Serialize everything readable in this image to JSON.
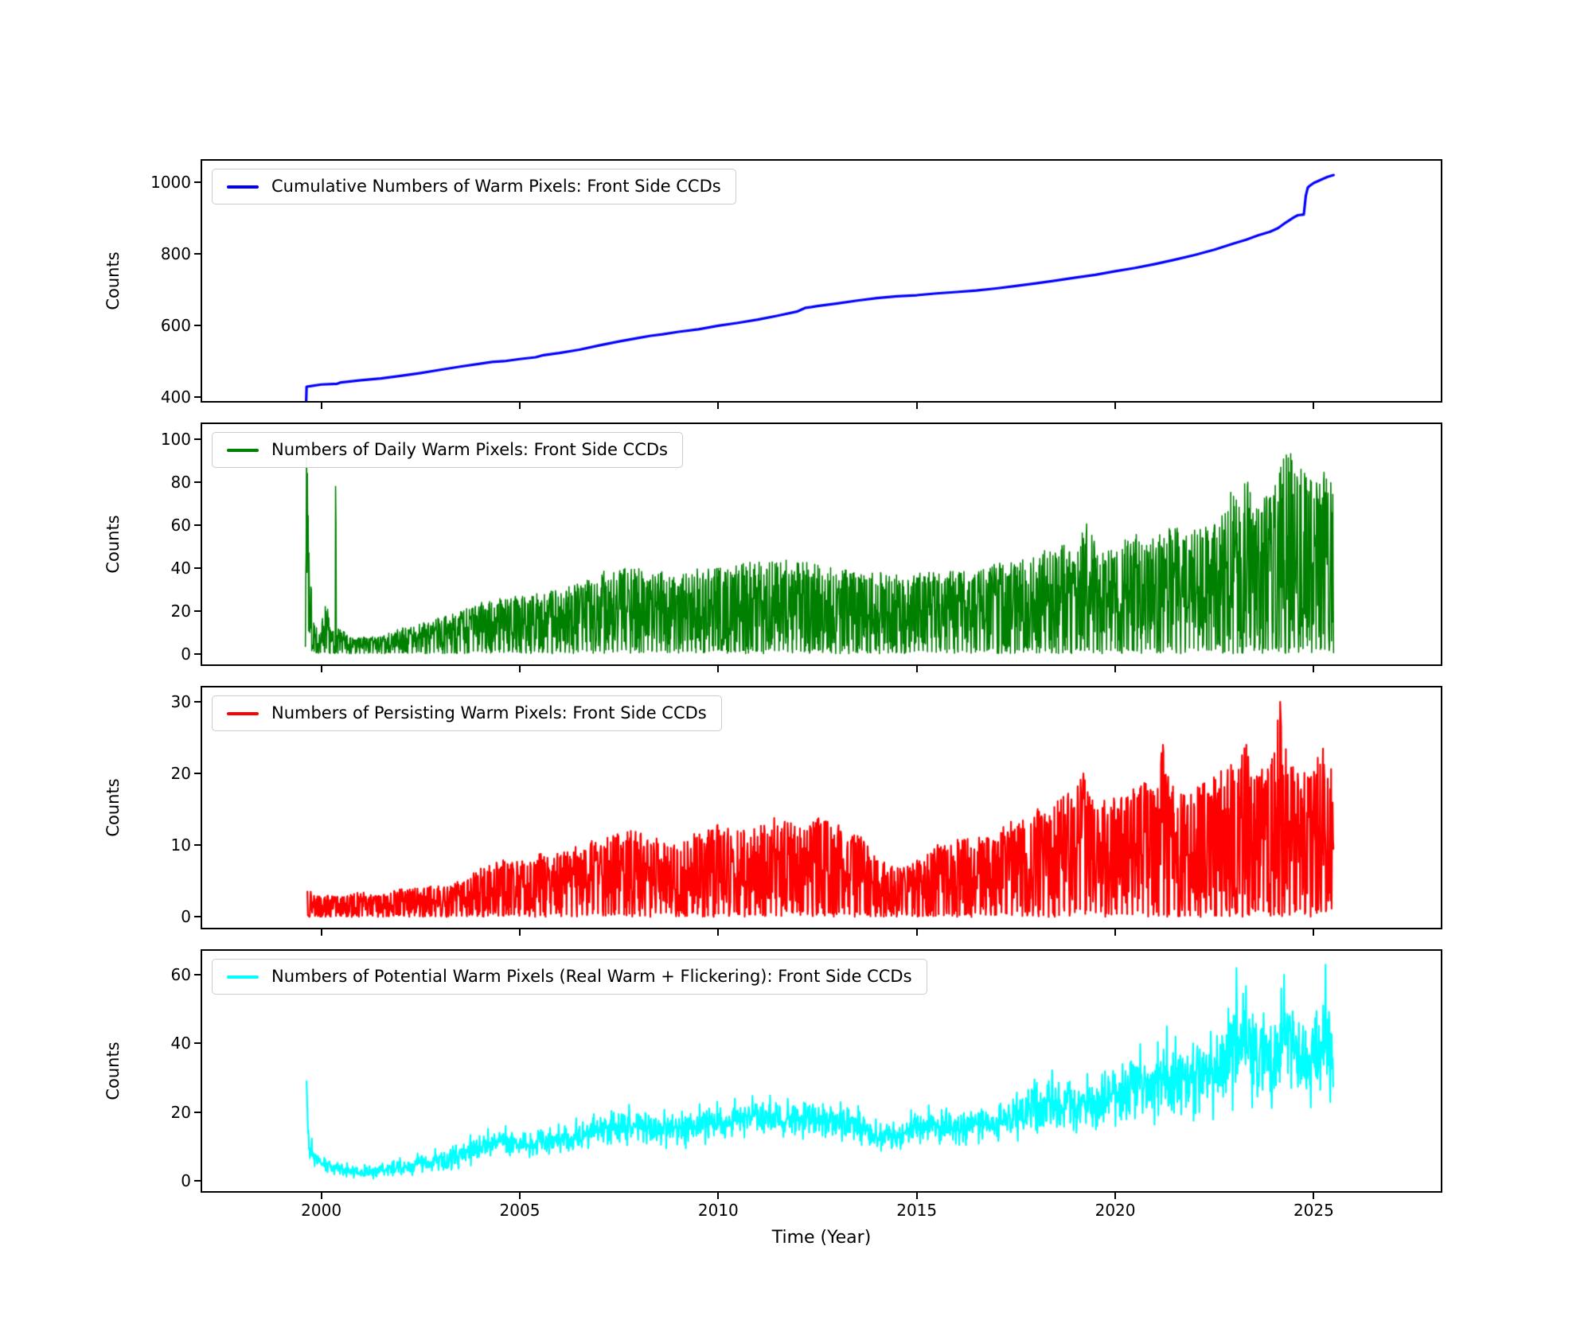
{
  "xaxis": {
    "label": "Time (Year)",
    "xlim": [
      1997.0,
      2028.2
    ],
    "ticks": [
      2000,
      2005,
      2010,
      2015,
      2020,
      2025
    ]
  },
  "chart_data": [
    {
      "id": "cumulative",
      "type": "line",
      "color": "#0000ff",
      "line_width": 3.2,
      "label": "Cumulative Numbers of Warm Pixels: Front Side CCDs",
      "ylabel": "Counts",
      "ylim": [
        390,
        1060
      ],
      "yticks": [
        400,
        600,
        800,
        1000
      ],
      "points": [
        [
          1999.62,
          390
        ],
        [
          1999.63,
          430
        ],
        [
          1999.75,
          432
        ],
        [
          2000.0,
          436
        ],
        [
          2000.4,
          438
        ],
        [
          2000.5,
          442
        ],
        [
          2001.0,
          448
        ],
        [
          2001.5,
          453
        ],
        [
          2002.0,
          460
        ],
        [
          2002.5,
          468
        ],
        [
          2003.0,
          477
        ],
        [
          2003.5,
          486
        ],
        [
          2004.0,
          494
        ],
        [
          2004.3,
          499
        ],
        [
          2004.6,
          501
        ],
        [
          2005.0,
          507
        ],
        [
          2005.4,
          512
        ],
        [
          2005.6,
          518
        ],
        [
          2006.0,
          524
        ],
        [
          2006.5,
          533
        ],
        [
          2007.0,
          545
        ],
        [
          2007.5,
          556
        ],
        [
          2008.0,
          566
        ],
        [
          2008.3,
          572
        ],
        [
          2008.6,
          576
        ],
        [
          2009.0,
          583
        ],
        [
          2009.5,
          590
        ],
        [
          2010.0,
          600
        ],
        [
          2010.5,
          608
        ],
        [
          2011.0,
          617
        ],
        [
          2011.5,
          628
        ],
        [
          2012.0,
          640
        ],
        [
          2012.2,
          650
        ],
        [
          2012.35,
          652
        ],
        [
          2012.5,
          655
        ],
        [
          2013.0,
          662
        ],
        [
          2013.5,
          670
        ],
        [
          2014.0,
          677
        ],
        [
          2014.5,
          682
        ],
        [
          2015.0,
          685
        ],
        [
          2015.5,
          690
        ],
        [
          2016.0,
          694
        ],
        [
          2016.5,
          698
        ],
        [
          2017.0,
          704
        ],
        [
          2017.5,
          711
        ],
        [
          2018.0,
          718
        ],
        [
          2018.5,
          726
        ],
        [
          2019.0,
          734
        ],
        [
          2019.5,
          742
        ],
        [
          2020.0,
          752
        ],
        [
          2020.5,
          761
        ],
        [
          2021.0,
          772
        ],
        [
          2021.5,
          784
        ],
        [
          2022.0,
          797
        ],
        [
          2022.5,
          812
        ],
        [
          2023.0,
          830
        ],
        [
          2023.3,
          840
        ],
        [
          2023.6,
          852
        ],
        [
          2023.9,
          862
        ],
        [
          2024.1,
          872
        ],
        [
          2024.3,
          888
        ],
        [
          2024.5,
          902
        ],
        [
          2024.6,
          908
        ],
        [
          2024.75,
          910
        ],
        [
          2024.8,
          962
        ],
        [
          2024.85,
          985
        ],
        [
          2024.9,
          990
        ],
        [
          2025.0,
          998
        ],
        [
          2025.2,
          1008
        ],
        [
          2025.35,
          1015
        ],
        [
          2025.5,
          1020
        ]
      ]
    },
    {
      "id": "daily",
      "type": "line",
      "color": "#008000",
      "line_width": 1.6,
      "label": "Numbers of Daily Warm Pixels: Front Side CCDs",
      "ylabel": "Counts",
      "ylim": [
        -5,
        107
      ],
      "yticks": [
        0,
        20,
        40,
        60,
        80,
        100
      ],
      "noise": {
        "mode": "band",
        "seed": 7,
        "dt": 0.01,
        "range": [
          1999.6,
          2025.5
        ],
        "envelope": [
          [
            1999.6,
            4
          ],
          [
            1999.63,
            100
          ],
          [
            1999.7,
            55
          ],
          [
            1999.78,
            16
          ],
          [
            1999.95,
            10
          ],
          [
            2000.05,
            20
          ],
          [
            2000.15,
            22
          ],
          [
            2000.25,
            10
          ],
          [
            2000.34,
            12
          ],
          [
            2000.365,
            78
          ],
          [
            2000.39,
            12
          ],
          [
            2000.8,
            8
          ],
          [
            2001.5,
            8
          ],
          [
            2002.0,
            12
          ],
          [
            2002.5,
            14
          ],
          [
            2003.0,
            17
          ],
          [
            2003.5,
            20
          ],
          [
            2004.0,
            24
          ],
          [
            2004.5,
            26
          ],
          [
            2005.0,
            27
          ],
          [
            2006.0,
            30
          ],
          [
            2006.5,
            33
          ],
          [
            2007.0,
            38
          ],
          [
            2007.5,
            40
          ],
          [
            2008.0,
            40
          ],
          [
            2009.0,
            38
          ],
          [
            2009.5,
            40
          ],
          [
            2010.0,
            40
          ],
          [
            2010.5,
            42
          ],
          [
            2011.0,
            43
          ],
          [
            2011.5,
            44
          ],
          [
            2012.0,
            43
          ],
          [
            2012.5,
            42
          ],
          [
            2013.0,
            40
          ],
          [
            2013.5,
            38
          ],
          [
            2014.0,
            38
          ],
          [
            2014.5,
            37
          ],
          [
            2015.0,
            38
          ],
          [
            2015.5,
            38
          ],
          [
            2016.0,
            40
          ],
          [
            2016.5,
            40
          ],
          [
            2017.0,
            42
          ],
          [
            2017.5,
            44
          ],
          [
            2018.0,
            46
          ],
          [
            2018.5,
            52
          ],
          [
            2019.0,
            50
          ],
          [
            2019.3,
            62
          ],
          [
            2019.6,
            50
          ],
          [
            2020.0,
            52
          ],
          [
            2020.5,
            58
          ],
          [
            2021.0,
            55
          ],
          [
            2021.5,
            60
          ],
          [
            2022.0,
            58
          ],
          [
            2022.5,
            62
          ],
          [
            2023.0,
            80
          ],
          [
            2023.3,
            82
          ],
          [
            2023.6,
            70
          ],
          [
            2024.0,
            78
          ],
          [
            2024.3,
            96
          ],
          [
            2024.6,
            90
          ],
          [
            2025.0,
            80
          ],
          [
            2025.3,
            88
          ],
          [
            2025.5,
            86
          ]
        ],
        "spikes": [
          [
            1999.63,
            100
          ],
          [
            1999.65,
            84
          ],
          [
            2000.1,
            22
          ],
          [
            2000.36,
            78
          ]
        ]
      }
    },
    {
      "id": "persisting",
      "type": "line",
      "color": "#ff0000",
      "line_width": 2.2,
      "label": "Numbers of Persisting Warm Pixels: Front Side CCDs",
      "ylabel": "Counts",
      "ylim": [
        -1.5,
        32
      ],
      "yticks": [
        0,
        10,
        20,
        30
      ],
      "noise": {
        "mode": "band",
        "seed": 13,
        "dt": 0.012,
        "range": [
          1999.65,
          2025.5
        ],
        "envelope": [
          [
            1999.65,
            4
          ],
          [
            2000.0,
            3
          ],
          [
            2000.5,
            3
          ],
          [
            2001.0,
            3.5
          ],
          [
            2001.5,
            3
          ],
          [
            2002.0,
            4
          ],
          [
            2002.5,
            4
          ],
          [
            2003.0,
            4.5
          ],
          [
            2003.5,
            5
          ],
          [
            2004.0,
            7
          ],
          [
            2004.5,
            8
          ],
          [
            2005.0,
            8
          ],
          [
            2005.5,
            9
          ],
          [
            2006.0,
            9
          ],
          [
            2006.5,
            10
          ],
          [
            2007.0,
            11
          ],
          [
            2007.5,
            12
          ],
          [
            2008.0,
            12
          ],
          [
            2008.5,
            11
          ],
          [
            2009.0,
            10
          ],
          [
            2009.5,
            12
          ],
          [
            2010.0,
            13
          ],
          [
            2010.5,
            12
          ],
          [
            2011.0,
            13
          ],
          [
            2011.5,
            14
          ],
          [
            2012.0,
            13
          ],
          [
            2012.5,
            14
          ],
          [
            2013.0,
            13
          ],
          [
            2013.5,
            12
          ],
          [
            2014.0,
            8
          ],
          [
            2014.5,
            7
          ],
          [
            2015.0,
            8
          ],
          [
            2015.5,
            10
          ],
          [
            2016.0,
            11
          ],
          [
            2016.5,
            11
          ],
          [
            2017.0,
            12
          ],
          [
            2017.5,
            14
          ],
          [
            2018.0,
            15
          ],
          [
            2018.5,
            16
          ],
          [
            2019.0,
            18
          ],
          [
            2019.2,
            20
          ],
          [
            2019.5,
            16
          ],
          [
            2020.0,
            17
          ],
          [
            2020.5,
            18
          ],
          [
            2021.0,
            20
          ],
          [
            2021.2,
            24
          ],
          [
            2021.5,
            18
          ],
          [
            2022.0,
            18
          ],
          [
            2022.5,
            20
          ],
          [
            2023.0,
            22
          ],
          [
            2023.3,
            24
          ],
          [
            2023.6,
            20
          ],
          [
            2024.0,
            24
          ],
          [
            2024.15,
            30
          ],
          [
            2024.4,
            22
          ],
          [
            2024.7,
            20
          ],
          [
            2025.0,
            22
          ],
          [
            2025.2,
            24
          ],
          [
            2025.5,
            20
          ]
        ],
        "spikes": [
          [
            2019.2,
            20
          ],
          [
            2021.2,
            24
          ],
          [
            2023.3,
            24
          ],
          [
            2024.16,
            30
          ]
        ]
      }
    },
    {
      "id": "potential",
      "type": "line",
      "color": "#00ffff",
      "line_width": 2.2,
      "label": "Numbers of Potential Warm Pixels (Real Warm + Flickering): Front Side CCDs",
      "ylabel": "Counts",
      "ylim": [
        -3,
        67
      ],
      "yticks": [
        0,
        20,
        40,
        60
      ],
      "noise": {
        "mode": "meanamp",
        "seed": 99,
        "dt": 0.012,
        "range": [
          1999.63,
          2025.5
        ],
        "envelope": [
          [
            1999.63,
            26,
            3
          ],
          [
            1999.7,
            9,
            3
          ],
          [
            1999.9,
            6,
            2
          ],
          [
            2000.2,
            4,
            1.5
          ],
          [
            2000.6,
            3,
            1.5
          ],
          [
            2001.0,
            2.5,
            1.5
          ],
          [
            2001.5,
            3,
            1.5
          ],
          [
            2002.0,
            4,
            2
          ],
          [
            2002.5,
            5,
            2
          ],
          [
            2003.0,
            6,
            2.5
          ],
          [
            2003.5,
            7,
            3
          ],
          [
            2004.0,
            10,
            3
          ],
          [
            2004.5,
            12,
            3
          ],
          [
            2005.0,
            10,
            3
          ],
          [
            2005.5,
            11,
            3
          ],
          [
            2006.0,
            12,
            3
          ],
          [
            2006.5,
            13,
            3.5
          ],
          [
            2007.0,
            15,
            4
          ],
          [
            2007.5,
            16,
            4
          ],
          [
            2008.0,
            16,
            4
          ],
          [
            2008.5,
            15,
            4
          ],
          [
            2009.0,
            15,
            4
          ],
          [
            2009.5,
            16,
            4
          ],
          [
            2010.0,
            17,
            4
          ],
          [
            2010.5,
            18,
            4
          ],
          [
            2011.0,
            19,
            4
          ],
          [
            2011.5,
            19,
            4
          ],
          [
            2012.0,
            18,
            4
          ],
          [
            2012.5,
            18,
            4
          ],
          [
            2013.0,
            17,
            4
          ],
          [
            2013.5,
            16,
            4
          ],
          [
            2014.0,
            13,
            3
          ],
          [
            2014.5,
            13,
            3
          ],
          [
            2015.0,
            16,
            4
          ],
          [
            2015.5,
            16,
            4
          ],
          [
            2016.0,
            15,
            4
          ],
          [
            2016.5,
            16,
            4
          ],
          [
            2017.0,
            17,
            4
          ],
          [
            2017.5,
            19,
            5
          ],
          [
            2018.0,
            21,
            6
          ],
          [
            2018.5,
            23,
            6
          ],
          [
            2019.0,
            22,
            6
          ],
          [
            2019.5,
            23,
            6
          ],
          [
            2020.0,
            25,
            7
          ],
          [
            2020.5,
            27,
            8
          ],
          [
            2021.0,
            28,
            8
          ],
          [
            2021.5,
            30,
            9
          ],
          [
            2022.0,
            30,
            9
          ],
          [
            2022.5,
            32,
            10
          ],
          [
            2023.0,
            38,
            12
          ],
          [
            2023.3,
            40,
            12
          ],
          [
            2023.6,
            34,
            10
          ],
          [
            2024.0,
            38,
            11
          ],
          [
            2024.3,
            42,
            11
          ],
          [
            2024.7,
            34,
            9
          ],
          [
            2025.0,
            36,
            10
          ],
          [
            2025.3,
            42,
            12
          ],
          [
            2025.5,
            34,
            8
          ]
        ],
        "spikes": [
          [
            1999.635,
            29
          ],
          [
            2021.3,
            45
          ],
          [
            2023.05,
            62
          ],
          [
            2024.25,
            60
          ],
          [
            2025.3,
            63
          ]
        ]
      }
    }
  ]
}
